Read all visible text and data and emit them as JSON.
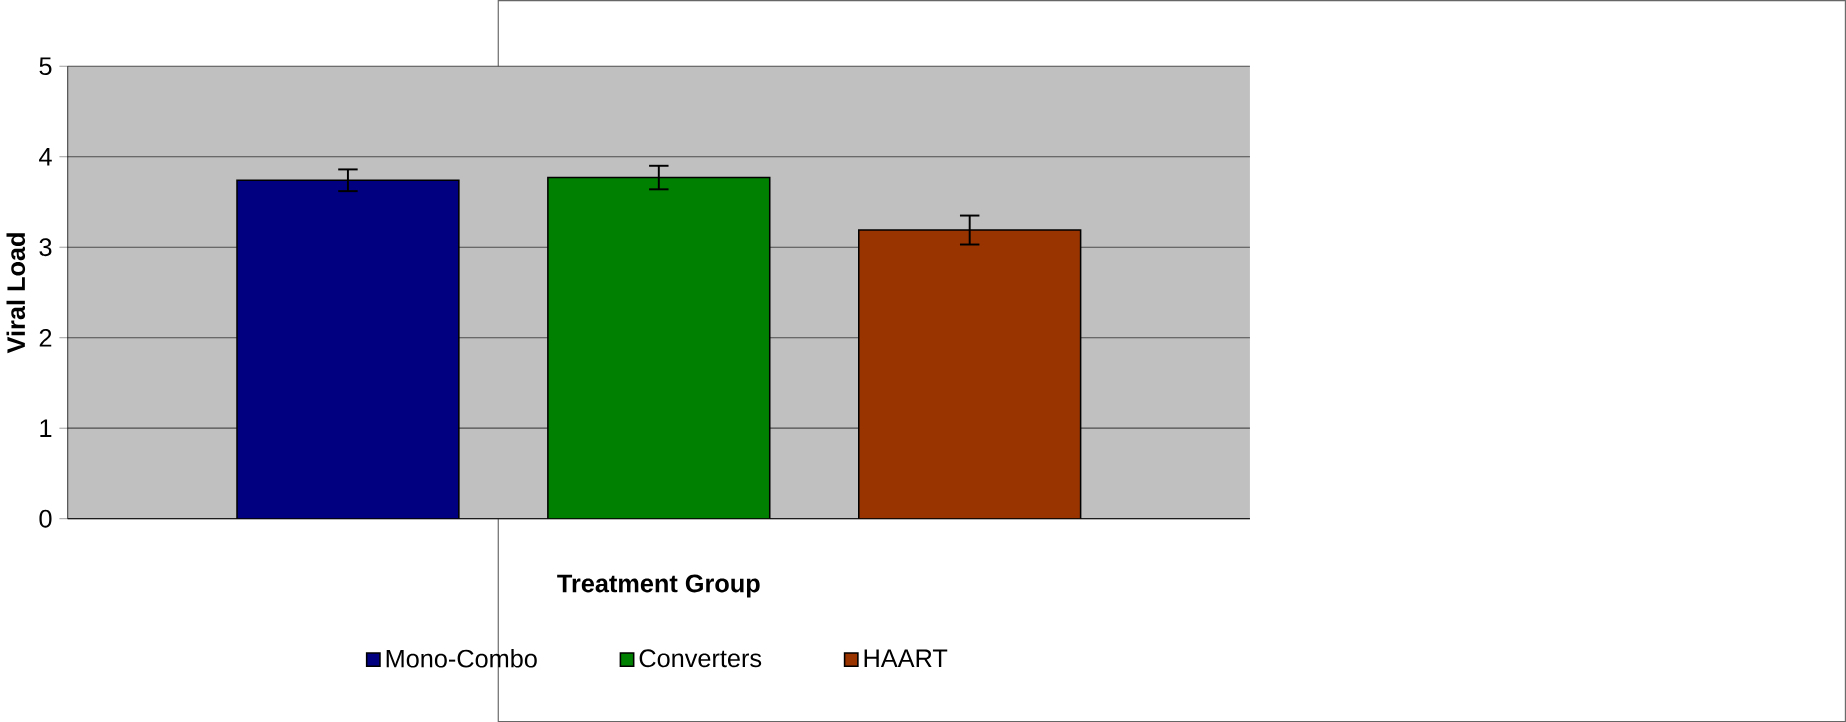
{
  "chart_data": {
    "type": "bar",
    "xlabel": "Treatment Group",
    "ylabel": "Viral Load",
    "categories": [
      null
    ],
    "series": [
      {
        "name": "Mono-Combo",
        "color": "#000080",
        "values": [
          3.74
        ],
        "errors": [
          0.12
        ]
      },
      {
        "name": "Converters",
        "color": "#008000",
        "values": [
          3.77
        ],
        "errors": [
          0.13
        ]
      },
      {
        "name": "HAART",
        "color": "#993300",
        "values": [
          3.19
        ],
        "errors": [
          0.16
        ]
      }
    ],
    "ylim": [
      0,
      5
    ],
    "yticks": [
      0,
      1,
      2,
      3,
      4,
      5
    ],
    "grid": "y",
    "legend": "bottom"
  }
}
